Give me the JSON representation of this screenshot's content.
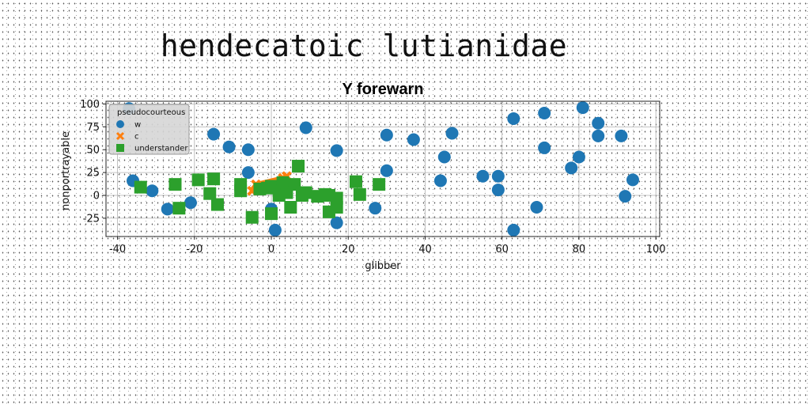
{
  "page_heading": "hendecatoic lutianidae",
  "chart_data": {
    "type": "scatter",
    "title": "Y forewarn",
    "xlabel": "glibber",
    "ylabel": "nonportrayable",
    "xlim": [
      -43,
      101
    ],
    "ylim": [
      -45,
      103
    ],
    "xticks": [
      -40,
      -20,
      0,
      20,
      40,
      60,
      80,
      100
    ],
    "yticks": [
      -25,
      0,
      25,
      50,
      75,
      100
    ],
    "grid": true,
    "legend": {
      "title": "pseudocourteous",
      "placement": "top-left"
    },
    "series": [
      {
        "name": "w",
        "color": "#1f77b4",
        "marker": "circle",
        "points": [
          [
            -37,
            95
          ],
          [
            -36,
            16
          ],
          [
            -31,
            5
          ],
          [
            -27,
            -15
          ],
          [
            -21,
            -8
          ],
          [
            -15,
            67
          ],
          [
            -11,
            53
          ],
          [
            -6,
            50
          ],
          [
            -6,
            25
          ],
          [
            0,
            -15
          ],
          [
            1,
            -38
          ],
          [
            9,
            74
          ],
          [
            17,
            49
          ],
          [
            17,
            -30
          ],
          [
            27,
            -14
          ],
          [
            30,
            66
          ],
          [
            30,
            27
          ],
          [
            37,
            61
          ],
          [
            44,
            16
          ],
          [
            45,
            42
          ],
          [
            47,
            68
          ],
          [
            55,
            21
          ],
          [
            59,
            21
          ],
          [
            59,
            6
          ],
          [
            63,
            84
          ],
          [
            63,
            -38
          ],
          [
            69,
            -13
          ],
          [
            71,
            90
          ],
          [
            71,
            52
          ],
          [
            78,
            30
          ],
          [
            80,
            42
          ],
          [
            81,
            96
          ],
          [
            85,
            79
          ],
          [
            85,
            65
          ],
          [
            91,
            65
          ],
          [
            92,
            -1
          ],
          [
            94,
            17
          ]
        ]
      },
      {
        "name": "c",
        "color": "#ff7f0e",
        "marker": "x-line",
        "points": [
          [
            -5,
            5
          ],
          [
            -4,
            12
          ],
          [
            3,
            19
          ],
          [
            4,
            21
          ]
        ]
      },
      {
        "name": "understander",
        "color": "#2ca02c",
        "marker": "square",
        "points": [
          [
            -34,
            9
          ],
          [
            -25,
            12
          ],
          [
            -24,
            -14
          ],
          [
            -19,
            17
          ],
          [
            -16,
            2
          ],
          [
            -15,
            18
          ],
          [
            -14,
            -10
          ],
          [
            -8,
            12
          ],
          [
            -8,
            5
          ],
          [
            -5,
            -24
          ],
          [
            -3,
            7
          ],
          [
            -1,
            8
          ],
          [
            0,
            10
          ],
          [
            0,
            -20
          ],
          [
            2,
            5
          ],
          [
            2,
            0
          ],
          [
            3,
            14
          ],
          [
            4,
            3
          ],
          [
            5,
            -13
          ],
          [
            6,
            12
          ],
          [
            7,
            32
          ],
          [
            8,
            0
          ],
          [
            9,
            3
          ],
          [
            12,
            -1
          ],
          [
            14,
            1
          ],
          [
            15,
            0
          ],
          [
            15,
            -18
          ],
          [
            17,
            -3
          ],
          [
            17,
            -13
          ],
          [
            22,
            15
          ],
          [
            23,
            1
          ],
          [
            28,
            12
          ]
        ]
      }
    ]
  }
}
